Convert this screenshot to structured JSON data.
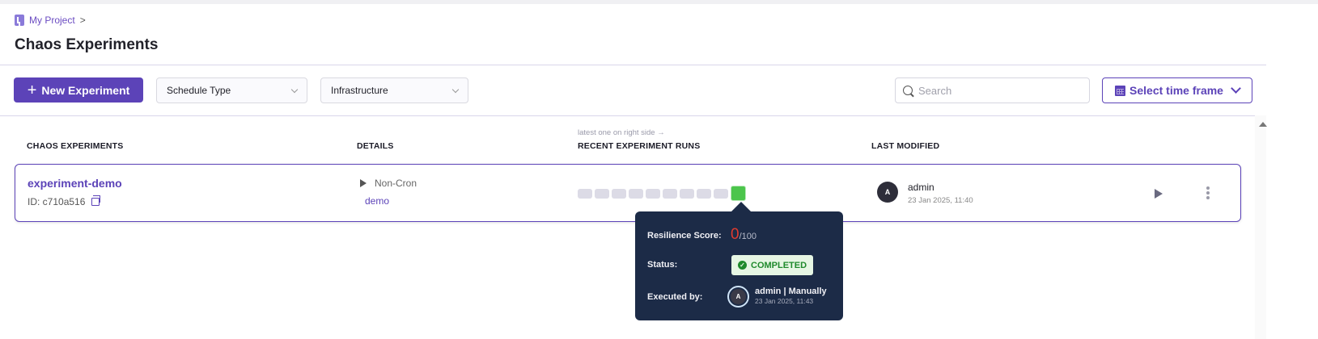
{
  "breadcrumb": {
    "project": "My Project",
    "separator": ">"
  },
  "page_title": "Chaos Experiments",
  "toolbar": {
    "new_experiment_icon": "+",
    "new_experiment_label": "New Experiment",
    "schedule_type": "Schedule Type",
    "infrastructure": "Infrastructure",
    "search_placeholder": "Search",
    "time_frame_label": "Select time frame"
  },
  "table": {
    "hint": "latest one on right side →",
    "columns": [
      "CHAOS EXPERIMENTS",
      "DETAILS",
      "RECENT EXPERIMENT RUNS",
      "LAST MODIFIED"
    ],
    "rows": [
      {
        "name": "experiment-demo",
        "id": "ID: c710a516",
        "schedule": "Non-Cron",
        "infrastructure": "demo",
        "runs": [
          "empty",
          "empty",
          "empty",
          "empty",
          "empty",
          "empty",
          "empty",
          "empty",
          "empty",
          "completed"
        ],
        "modified_by": "admin",
        "avatar_initial": "A",
        "modified_at": "23 Jan 2025, 11:40"
      }
    ]
  },
  "tooltip": {
    "score_label": "Resilience Score:",
    "score": "0",
    "score_max": "/100",
    "status_label": "Status:",
    "status": "COMPLETED",
    "executed_label": "Executed by:",
    "executor_initial": "A",
    "executor": "admin | Manually",
    "executed_at": "23 Jan 2025, 11:43"
  },
  "colors": {
    "accent": "#5c43b8",
    "success": "#4cc54c",
    "tooltip_bg": "#1c2b47",
    "score": "#e03b2f"
  }
}
